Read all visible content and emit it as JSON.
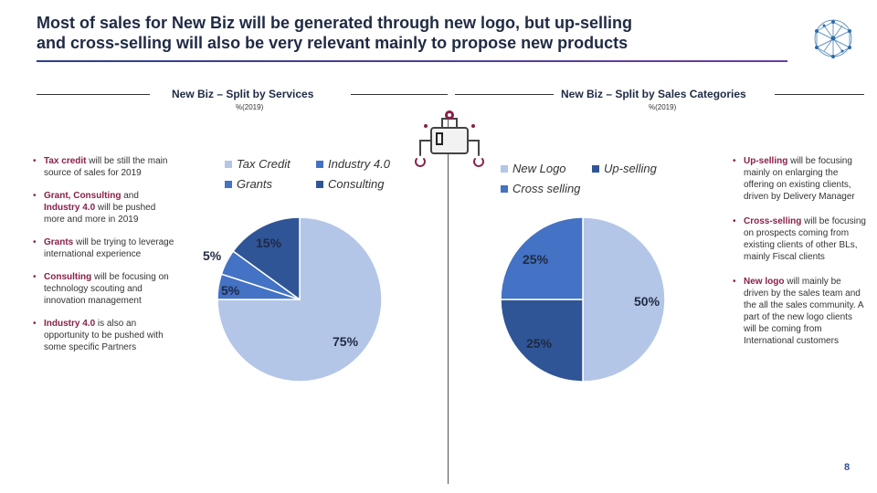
{
  "header": {
    "title_line1": "Most of sales for New Biz will be generated through new logo, but up-selling",
    "title_line2": "and cross-selling will also be very relevant mainly to propose new products"
  },
  "left_notes": [
    {
      "kw": "Tax credit",
      "text": " will be still the main source of sales for 2019"
    },
    {
      "kw": "Grant, Consulting",
      "text": " and ",
      "kw2": "Industry 4.0",
      "text2": " will be pushed more and more in 2019"
    },
    {
      "kw": "Grants",
      "text": " will be trying to leverage international experience"
    },
    {
      "kw": "Consulting",
      "text": " will be focusing on technology scouting and innovation management"
    },
    {
      "kw": "Industry 4.0",
      "text": " is also an opportunity to be pushed with some specific Partners"
    }
  ],
  "right_notes": [
    {
      "kw": "Up-selling",
      "text": " will be focusing mainly on enlarging the offering on existing clients, driven by Delivery Manager"
    },
    {
      "kw": "Cross-selling",
      "text": " will be focusing on prospects coming from existing clients of other BLs, mainly Fiscal clients"
    },
    {
      "kw": "New logo",
      "text": " will mainly be driven by the sales team and the all the sales community. A part of the new logo clients will be coming from International customers"
    }
  ],
  "page_number": "8",
  "colors": {
    "light": "#b4c6e7",
    "mid": "#4472c4",
    "dark": "#2f5597",
    "accent": "#8a1f4a"
  },
  "chart_data": [
    {
      "type": "pie",
      "title": "New Biz – Split by Services",
      "subtitle": "%(2019)",
      "categories": [
        "Tax Credit",
        "Industry 4.0",
        "Grants",
        "Consulting"
      ],
      "values": [
        75,
        5,
        5,
        15
      ],
      "labels": [
        "75%",
        "5%",
        "5%",
        "15%"
      ],
      "colors": [
        "#b4c6e7",
        "#4472c4",
        "#4472c4",
        "#2f5597"
      ],
      "legend": "top"
    },
    {
      "type": "pie",
      "title": "New Biz – Split by Sales Categories",
      "subtitle": "%(2019)",
      "categories": [
        "New Logo",
        "Up-selling",
        "Cross selling"
      ],
      "values": [
        50,
        25,
        25
      ],
      "labels": [
        "50%",
        "25%",
        "25%"
      ],
      "colors": [
        "#b4c6e7",
        "#2f5597",
        "#4472c4"
      ],
      "legend": "top"
    }
  ]
}
